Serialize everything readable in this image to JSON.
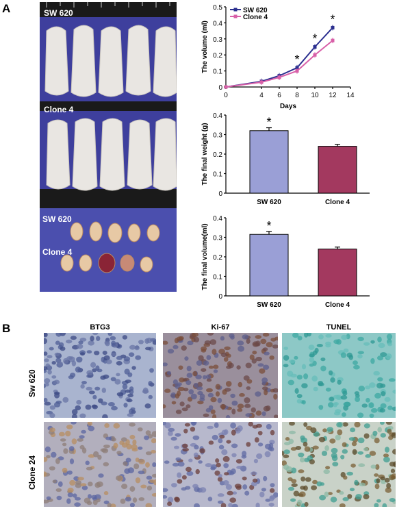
{
  "panels": {
    "a_label": "A",
    "b_label": "B"
  },
  "photos": {
    "group1_label": "SW 620",
    "group2_label": "Clone 4",
    "tumor_label1": "SW 620",
    "tumor_label2": "Clone 4"
  },
  "histology": {
    "columns": [
      "BTG3",
      "Ki-67",
      "TUNEL"
    ],
    "rows": [
      "Sw 620",
      "Clone 24"
    ]
  },
  "colors": {
    "sw620_line": "#2b2f8f",
    "clone4_line": "#d85fa8",
    "sw620_bar": "#9a9fd6",
    "clone4_bar": "#a3395f",
    "photo_blue": "#3e3f9d"
  },
  "chart_data": [
    {
      "type": "line",
      "xlabel": "Days",
      "ylabel": "The volume (ml)",
      "xlim": [
        0,
        14
      ],
      "ylim": [
        0,
        0.5
      ],
      "xticks": [
        "0",
        "4",
        "6",
        "8",
        "10",
        "12",
        "14"
      ],
      "yticks": [
        "0",
        "0.1",
        "0.2",
        "0.3",
        "0.4",
        "0.5"
      ],
      "legend_position": "top-left",
      "series": [
        {
          "name": "SW 620",
          "x": [
            0,
            4,
            6,
            8,
            10,
            12
          ],
          "values": [
            0,
            0.035,
            0.07,
            0.12,
            0.25,
            0.37
          ]
        },
        {
          "name": "Clone 4",
          "x": [
            0,
            4,
            6,
            8,
            10,
            12
          ],
          "values": [
            0,
            0.03,
            0.06,
            0.1,
            0.2,
            0.29
          ]
        }
      ],
      "significance": {
        "marker": "*",
        "x": [
          8,
          10,
          12
        ]
      }
    },
    {
      "type": "bar",
      "ylabel": "The final  weight (g)",
      "ylim": [
        0,
        0.4
      ],
      "yticks": [
        "0",
        "0.1",
        "0.2",
        "0.3",
        "0.4"
      ],
      "categories": [
        "SW 620",
        "Clone 4"
      ],
      "values": [
        0.32,
        0.24
      ],
      "errors": [
        0.015,
        0.01
      ],
      "significance": "*"
    },
    {
      "type": "bar",
      "ylabel": "The final  volume(ml)",
      "ylim": [
        0,
        0.4
      ],
      "yticks": [
        "0",
        "0.1",
        "0.2",
        "0.3",
        "0.4"
      ],
      "categories": [
        "SW 620",
        "Clone 4"
      ],
      "values": [
        0.315,
        0.24
      ],
      "errors": [
        0.015,
        0.01
      ],
      "significance": "*"
    }
  ]
}
